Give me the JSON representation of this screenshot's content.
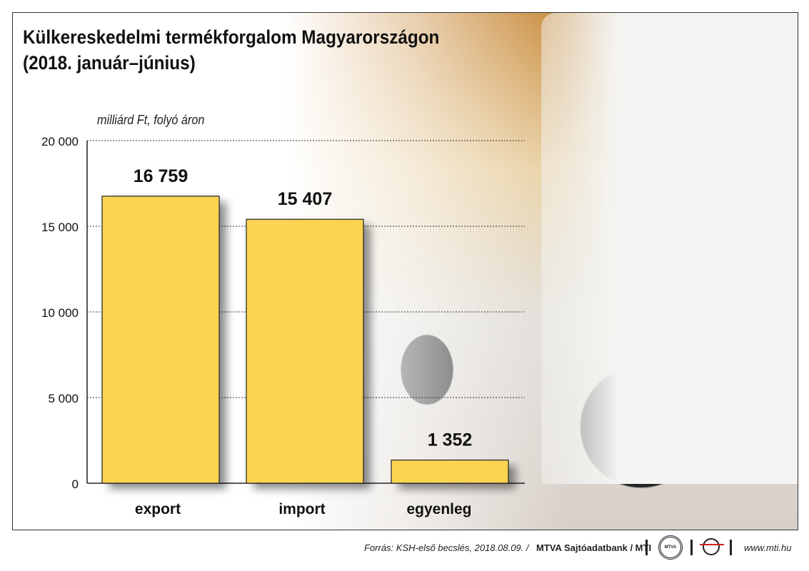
{
  "title_line1": "Külkereskedelmi termékforgalom Magyarországon",
  "title_line2": "(2018. január–június)",
  "chart_data": {
    "type": "bar",
    "ylabel": "milliárd Ft, folyó áron",
    "categories": [
      "export",
      "import",
      "egyenleg"
    ],
    "values": [
      16759,
      15407,
      1352
    ],
    "value_labels": [
      "16 759",
      "15 407",
      "1 352"
    ],
    "ylim": [
      0,
      20000
    ],
    "yticks": [
      0,
      5000,
      10000,
      15000,
      20000
    ],
    "ytick_labels": [
      "0",
      "5 000",
      "10 000",
      "15 000",
      "20 000"
    ],
    "grid": true,
    "bar_color": "#fdd452"
  },
  "footer": {
    "source": "Forrás: KSH-első becslés, 2018.08.09. / ",
    "agency": "MTVA Sajtóadatbank / MTI",
    "logo1": "MTVA",
    "url": "www.mti.hu"
  }
}
